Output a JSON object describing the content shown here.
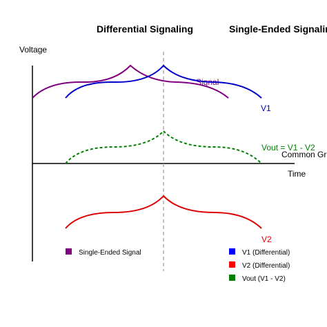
{
  "titles": {
    "differential": "Differential Signaling",
    "single_ended": "Single-Ended Signaling"
  },
  "axes": {
    "y_label": "Voltage",
    "x_label": "Time",
    "ground_label": "Common Ground"
  },
  "signals": {
    "single_ended": {
      "label": "Signal",
      "color": "#800080"
    },
    "v1": {
      "label": "V1",
      "color": "#0000cc"
    },
    "vout": {
      "label": "Vout = V1 - V2",
      "color": "#008000"
    },
    "v2": {
      "label": "V2",
      "color": "#dd0000"
    }
  },
  "legend": {
    "left": [
      {
        "label": "Single-Ended Signal",
        "color": "#800080"
      }
    ],
    "right": [
      {
        "label": "V1 (Differential)",
        "color": "#0000ff"
      },
      {
        "label": "V2 (Differential)",
        "color": "#ff0000"
      },
      {
        "label": "Vout (V1 - V2)",
        "color": "#008000"
      }
    ]
  }
}
